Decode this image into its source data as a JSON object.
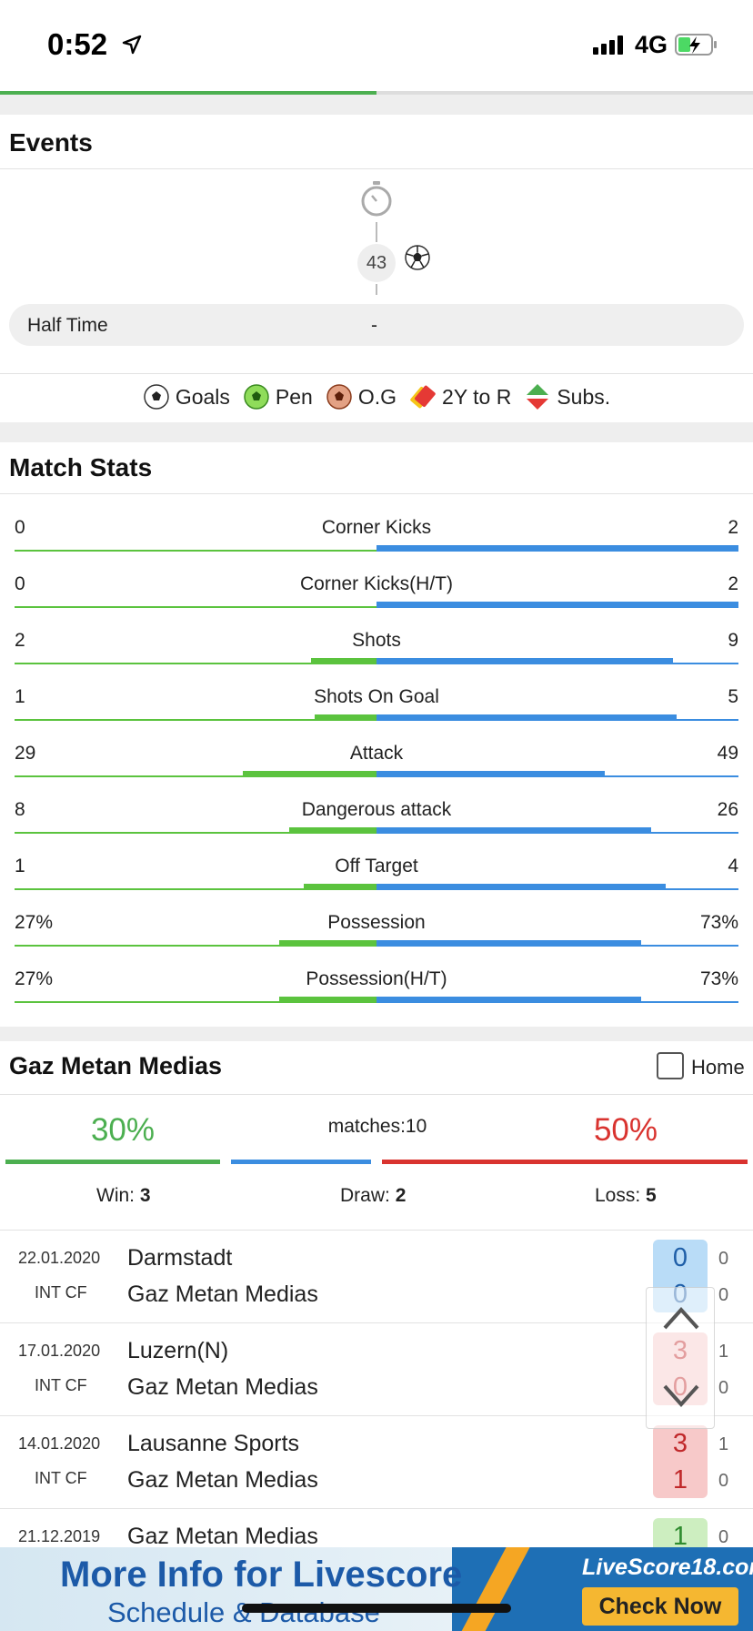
{
  "status_bar": {
    "time": "0:52",
    "network": "4G"
  },
  "page_progress": 0.5,
  "events": {
    "title": "Events",
    "goal_minute": "43",
    "half_time_label": "Half Time",
    "half_time_score": "-",
    "legend": [
      {
        "icon": "goal-ball-icon",
        "label": "Goals"
      },
      {
        "icon": "penalty-ball-icon",
        "label": "Pen"
      },
      {
        "icon": "own-goal-ball-icon",
        "label": "O.G"
      },
      {
        "icon": "second-yellow-to-red-icon",
        "label": "2Y to R"
      },
      {
        "icon": "substitution-icon",
        "label": "Subs."
      }
    ]
  },
  "match_stats": {
    "title": "Match Stats",
    "colors": {
      "home": "#5bc33e",
      "away": "#3b8de0"
    },
    "rows": [
      {
        "name": "Corner Kicks",
        "home": "0",
        "away": "2",
        "home_frac": 0.0,
        "away_frac": 1.0
      },
      {
        "name": "Corner Kicks(H/T)",
        "home": "0",
        "away": "2",
        "home_frac": 0.0,
        "away_frac": 1.0
      },
      {
        "name": "Shots",
        "home": "2",
        "away": "9",
        "home_frac": 0.18,
        "away_frac": 0.82
      },
      {
        "name": "Shots On Goal",
        "home": "1",
        "away": "5",
        "home_frac": 0.17,
        "away_frac": 0.83
      },
      {
        "name": "Attack",
        "home": "29",
        "away": "49",
        "home_frac": 0.37,
        "away_frac": 0.63
      },
      {
        "name": "Dangerous attack",
        "home": "8",
        "away": "26",
        "home_frac": 0.24,
        "away_frac": 0.76
      },
      {
        "name": "Off Target",
        "home": "1",
        "away": "4",
        "home_frac": 0.2,
        "away_frac": 0.8
      },
      {
        "name": "Possession",
        "home": "27%",
        "away": "73%",
        "home_frac": 0.27,
        "away_frac": 0.73
      },
      {
        "name": "Possession(H/T)",
        "home": "27%",
        "away": "73%",
        "home_frac": 0.27,
        "away_frac": 0.73
      }
    ]
  },
  "team_form": {
    "team": "Gaz Metan Medias",
    "home_filter_label": "Home",
    "win_pct": "30%",
    "loss_pct": "50%",
    "matches_label": "matches:10",
    "win_label": "Win:",
    "win_count": "3",
    "draw_label": "Draw:",
    "draw_count": "2",
    "loss_label": "Loss:",
    "loss_count": "5",
    "colors": {
      "win": "#4caf50",
      "draw": "#3b8de0",
      "loss": "#d9332f"
    },
    "matches": [
      {
        "date": "22.01.2020",
        "comp": "INT CF",
        "home": "Darmstadt",
        "away": "Gaz Metan Medias",
        "score_home": "0",
        "score_away": "0",
        "ht_home": "0",
        "ht_away": "0",
        "result": "draw"
      },
      {
        "date": "17.01.2020",
        "comp": "INT CF",
        "home": "Luzern(N)",
        "away": "Gaz Metan Medias",
        "score_home": "3",
        "score_away": "0",
        "ht_home": "1",
        "ht_away": "0",
        "result": "loss"
      },
      {
        "date": "14.01.2020",
        "comp": "INT CF",
        "home": "Lausanne Sports",
        "away": "Gaz Metan Medias",
        "score_home": "3",
        "score_away": "1",
        "ht_home": "1",
        "ht_away": "0",
        "result": "loss"
      },
      {
        "date": "21.12.2019",
        "comp": "",
        "home": "Gaz Metan Medias",
        "away": "",
        "score_home": "1",
        "score_away": "",
        "ht_home": "0",
        "ht_away": "",
        "result": "win"
      }
    ]
  },
  "ad": {
    "headline": "More Info for Livescore",
    "subline": "Schedule & Database",
    "brand": "LiveScore18.com",
    "cta": "Check Now"
  }
}
